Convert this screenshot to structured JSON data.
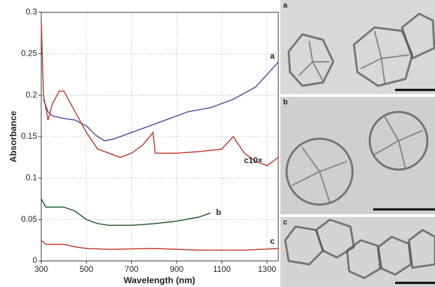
{
  "chart_data": {
    "type": "line",
    "xlabel": "Wavelength (nm)",
    "ylabel": "Absorbance",
    "xlim": [
      300,
      1350
    ],
    "ylim": [
      0,
      0.3
    ],
    "xticks": [
      300,
      500,
      700,
      900,
      1100,
      1300
    ],
    "yticks": [
      0,
      0.05,
      0.1,
      0.15,
      0.2,
      0.25,
      0.3
    ],
    "grid": true,
    "series": [
      {
        "name": "a",
        "color": "#4b4fa6",
        "x": [
          310,
          330,
          350,
          400,
          450,
          500,
          540,
          580,
          620,
          650,
          750,
          850,
          950,
          1050,
          1150,
          1250,
          1300,
          1350
        ],
        "values": [
          0.195,
          0.18,
          0.175,
          0.172,
          0.17,
          0.163,
          0.152,
          0.145,
          0.147,
          0.15,
          0.16,
          0.17,
          0.18,
          0.185,
          0.195,
          0.21,
          0.225,
          0.24
        ]
      },
      {
        "name": "c10×",
        "color": "#c0392b",
        "x": [
          300,
          310,
          330,
          350,
          380,
          400,
          450,
          500,
          550,
          600,
          650,
          700,
          750,
          795,
          805,
          900,
          1000,
          1100,
          1150,
          1200,
          1250,
          1300,
          1350
        ],
        "values": [
          0.29,
          0.2,
          0.17,
          0.19,
          0.205,
          0.205,
          0.18,
          0.155,
          0.135,
          0.13,
          0.125,
          0.13,
          0.14,
          0.155,
          0.13,
          0.13,
          0.132,
          0.135,
          0.15,
          0.13,
          0.12,
          0.115,
          0.125
        ]
      },
      {
        "name": "b",
        "color": "#1e5a2a",
        "x": [
          300,
          320,
          400,
          450,
          500,
          550,
          600,
          700,
          800,
          900,
          1000,
          1050
        ],
        "values": [
          0.075,
          0.065,
          0.065,
          0.06,
          0.05,
          0.045,
          0.043,
          0.043,
          0.045,
          0.048,
          0.053,
          0.058
        ]
      },
      {
        "name": "c",
        "color": "#c0392b",
        "x": [
          300,
          320,
          400,
          450,
          500,
          600,
          800,
          1000,
          1200,
          1350
        ],
        "values": [
          0.025,
          0.02,
          0.02,
          0.017,
          0.015,
          0.014,
          0.015,
          0.013,
          0.013,
          0.015
        ]
      }
    ]
  },
  "panels": {
    "labels": [
      "a",
      "b",
      "c"
    ]
  }
}
